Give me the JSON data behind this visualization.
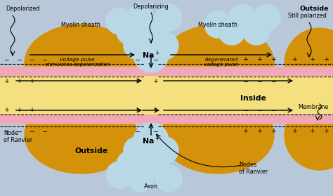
{
  "bg_color": "#b8c8d8",
  "axon_color": "#f5e080",
  "membrane_color": "#f0a8b8",
  "myelin_color": "#d4920a",
  "circle_color": "#b8d8e8",
  "na_circle_color": "#b8d8e8",
  "labels": {
    "outside_top_right": "Outside",
    "depolarized": "Depolarized",
    "myelin_sheath_left": "Myelin sheath",
    "myelin_sheath_right": "Myelin sheath",
    "depolarizing": "Depolarizing",
    "still_polarized": "Still polarized",
    "voltage_pulse": "Voltage pulse\nstimulates depolarization",
    "regenerated_voltage": "Regenerated\nvoltage pulse",
    "inside": "Inside",
    "membrane": "Membrane",
    "node_of_ranvier_left": "Node\nof Ranvier",
    "outside_bottom": "Outside",
    "nodes_of_ranvier_right": "Nodes\nof Ranvier",
    "axon": "Axon"
  },
  "fs": 5.8
}
